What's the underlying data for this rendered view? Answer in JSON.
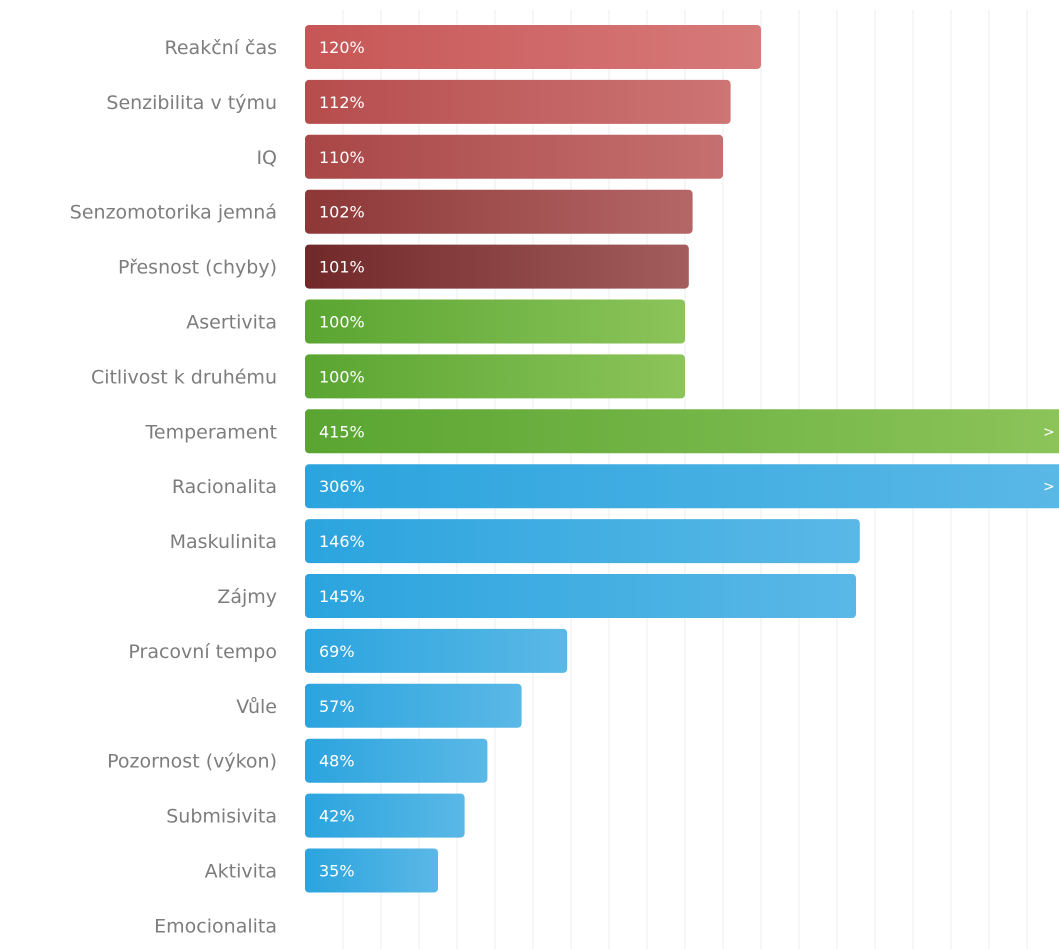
{
  "chart_data": {
    "type": "bar",
    "orientation": "horizontal",
    "grid": true,
    "xlim": [
      0,
      200
    ],
    "overflow_marker": ">",
    "colors": {
      "red_dark": "#6e2a2a",
      "red_light": "#d96a6a",
      "green_dark": "#5aa532",
      "green_light": "#8cc45a",
      "blue_dark": "#2ba4de",
      "blue_light": "#5ab8e6",
      "grid": "#ececec",
      "label": "#7d7d7d"
    },
    "categories": [
      "Reakční čas",
      "Senzibilita v týmu",
      "IQ",
      "Senzomotorika jemná",
      "Přesnost (chyby)",
      "Asertivita",
      "Citlivost k druhému",
      "Temperament",
      "Racionalita",
      "Maskulinita",
      "Zájmy",
      "Pracovní tempo",
      "Vůle",
      "Pozornost (výkon)",
      "Submisivita",
      "Aktivita",
      "Emocionalita"
    ],
    "values": [
      120,
      112,
      110,
      102,
      101,
      100,
      100,
      415,
      306,
      146,
      145,
      69,
      57,
      48,
      42,
      35,
      null
    ],
    "value_labels": [
      "120%",
      "112%",
      "110%",
      "102%",
      "101%",
      "100%",
      "100%",
      "415%",
      "306%",
      "146%",
      "145%",
      "69%",
      "57%",
      "48%",
      "42%",
      "35%",
      ""
    ],
    "groups": [
      "red",
      "red",
      "red",
      "red",
      "red",
      "green",
      "green",
      "green",
      "blue",
      "blue",
      "blue",
      "blue",
      "blue",
      "blue",
      "blue",
      "blue",
      "blue"
    ],
    "red_shade": [
      0.0,
      0.18,
      0.32,
      0.62,
      0.92
    ]
  }
}
